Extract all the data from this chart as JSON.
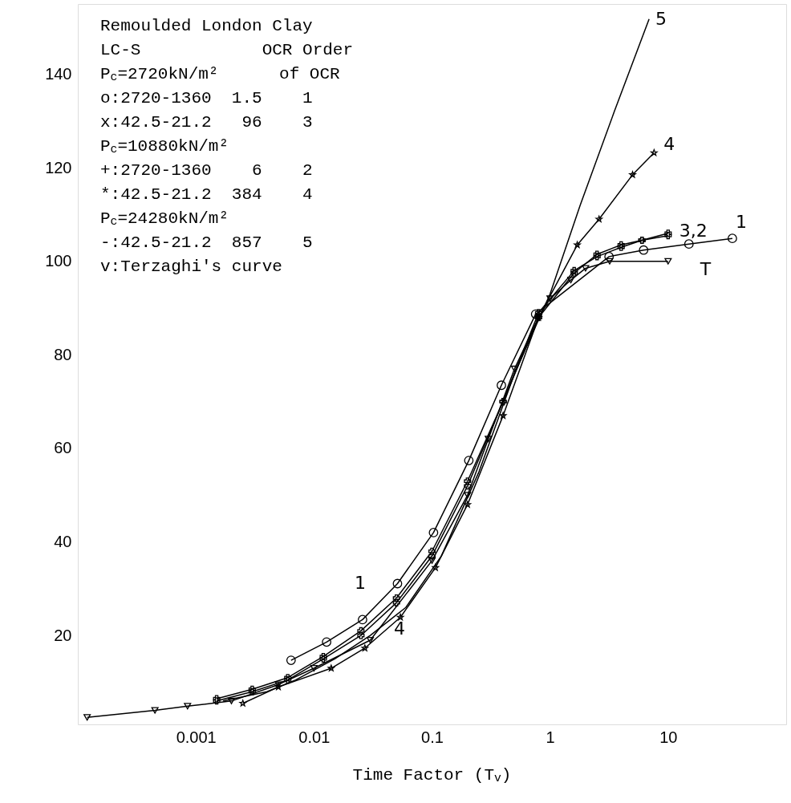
{
  "chart_data": {
    "type": "line",
    "xlabel": "Time Factor (T$_{v}$)",
    "log": "x",
    "xlim": [
      0.0001,
      100
    ],
    "xticks": [
      0.001,
      0.01,
      0.1,
      1,
      10
    ],
    "ylim": [
      1,
      155
    ],
    "yticks": [
      20,
      40,
      60,
      80,
      100,
      120,
      140
    ],
    "grid": false,
    "line_style": "solid",
    "series": [
      {
        "color": "#000000",
        "marker": "circle",
        "x": [
          0.0064,
          0.0128,
          0.0258,
          0.051,
          0.103,
          0.205,
          0.387,
          0.755,
          3.16,
          6.2,
          15,
          35
        ],
        "values": [
          14.7,
          18.6,
          23.4,
          31.1,
          42.0,
          57.4,
          73.5,
          88.7,
          101.0,
          102.4,
          103.7,
          104.9
        ]
      },
      {
        "color": "#000000",
        "marker": "cross",
        "x": [
          0.0015,
          0.003,
          0.006,
          0.012,
          0.025,
          0.05,
          0.1,
          0.2,
          0.4,
          0.8,
          1.6,
          2.5,
          4,
          6,
          10
        ],
        "values": [
          6.5,
          8.5,
          11,
          15.5,
          21,
          28,
          38,
          53,
          70,
          88,
          97.5,
          101.5,
          103.5,
          104.5,
          105.5
        ]
      },
      {
        "color": "#000000",
        "marker": "cross",
        "x": [
          0.0015,
          0.003,
          0.006,
          0.012,
          0.025,
          0.05,
          0.1,
          0.2,
          0.4,
          0.8,
          1.6,
          2.5,
          4,
          6,
          10
        ],
        "values": [
          6,
          8,
          10.5,
          15,
          20,
          27,
          37,
          52,
          70,
          89,
          98,
          101,
          103,
          104.5,
          106
        ]
      },
      {
        "color": "#000000",
        "marker": "star",
        "x": [
          0.0025,
          0.005,
          0.014,
          0.027,
          0.054,
          0.107,
          0.2,
          0.4,
          0.8,
          1.7,
          2.6,
          5,
          7.6
        ],
        "values": [
          5.5,
          9,
          13,
          17.3,
          23.9,
          34.5,
          48,
          67,
          88,
          103.5,
          109,
          118.5,
          123.2
        ]
      },
      {
        "color": "#000000",
        "marker": "none",
        "x": [
          0.0017,
          0.004,
          0.007,
          0.015,
          0.03,
          0.06,
          0.12,
          0.25,
          0.5,
          1,
          1.8,
          3.5,
          6.9
        ],
        "values": [
          6,
          8,
          10.5,
          15,
          20,
          26,
          37,
          55,
          76,
          93,
          112,
          132,
          151.8
        ]
      },
      {
        "color": "#000000",
        "marker": "triangle",
        "x": [
          0.00012,
          0.00045,
          0.00085,
          0.002,
          0.005,
          0.01,
          0.03,
          0.1,
          0.2,
          0.3,
          0.5,
          0.8,
          1,
          1.5,
          2,
          3.2,
          10
        ],
        "values": [
          2.5,
          4.0,
          4.9,
          6,
          9.5,
          13,
          19,
          36,
          50,
          62,
          77,
          88,
          92,
          96,
          98.5,
          100,
          100
        ]
      }
    ],
    "annotations": [
      "Remoulded London Clay",
      "LC-S            OCR Order",
      "P$_{c}$=2720kN/m²      of OCR",
      "o:2720-1360  1.5    1",
      "x:42.5-21.2   96    3",
      "P$_{c}$=10880kN/m²",
      "+:2720-1360    6    2",
      "*:42.5-21.2  384    4",
      "P$_{c}$=24280kN/m²",
      "-:42.5-21.2  857    5",
      "v:Terzaghi's curve",
      "5",
      "4",
      "3,2",
      "1",
      "T",
      "1",
      "4"
    ]
  }
}
